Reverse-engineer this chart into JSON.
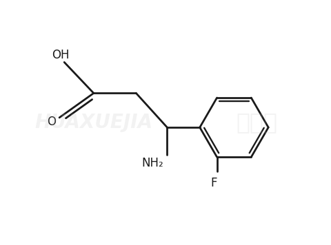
{
  "background_color": "#ffffff",
  "line_color": "#1a1a1a",
  "line_width": 2.0,
  "label_OH": "OH",
  "label_O": "O",
  "label_NH2": "NH₂",
  "label_F": "F",
  "font_size_labels": 12,
  "watermark1": "HUAXUEJIA",
  "watermark2": "化学加",
  "wm_fontsize1": 20,
  "wm_fontsize2": 24,
  "wm_alpha": 0.18
}
